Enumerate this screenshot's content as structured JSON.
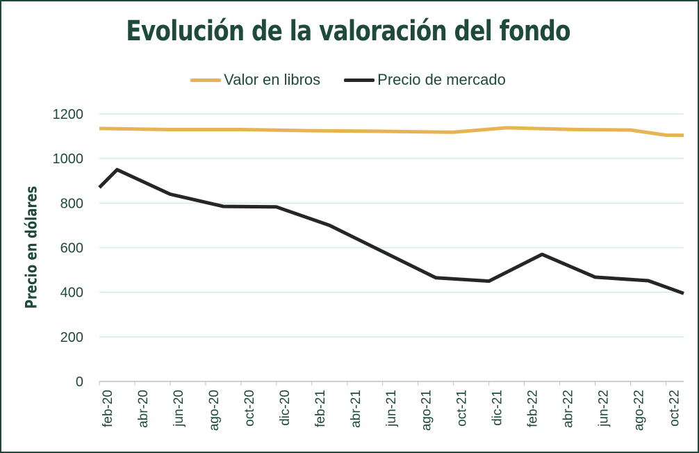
{
  "chart_data": {
    "type": "line",
    "title": "Evolución de la valoración del fondo",
    "xlabel": "",
    "ylabel": "Precio en dólares",
    "ylim": [
      0,
      1200
    ],
    "yticks": [
      "0",
      "200",
      "400",
      "600",
      "800",
      "1000",
      "1200"
    ],
    "categories": [
      "feb-20",
      "abr-20",
      "jun-20",
      "ago-20",
      "oct-20",
      "dic-20",
      "feb-21",
      "abr-21",
      "jun-21",
      "ago-21",
      "oct-21",
      "dic-21",
      "feb-22",
      "abr-22",
      "jun-22",
      "ago-22",
      "oct-22"
    ],
    "x": [
      0,
      1,
      2,
      3,
      4,
      5,
      6,
      7,
      8,
      9,
      10,
      11,
      12,
      13,
      14,
      15,
      16,
      17,
      18,
      19,
      20,
      21,
      22,
      23,
      24,
      25,
      26,
      27,
      28,
      29,
      30,
      31,
      32,
      33
    ],
    "legend_position": "top",
    "grid": true,
    "series": [
      {
        "name": "Valor en libros",
        "color": "#e6b552",
        "points": [
          [
            0,
            1135
          ],
          [
            4,
            1130
          ],
          [
            8,
            1130
          ],
          [
            12,
            1125
          ],
          [
            16,
            1122
          ],
          [
            20,
            1118
          ],
          [
            23,
            1138
          ],
          [
            27,
            1130
          ],
          [
            30,
            1128
          ],
          [
            32,
            1105
          ],
          [
            33,
            1104
          ]
        ]
      },
      {
        "name": "Precio de mercado",
        "color": "#262626",
        "points": [
          [
            0,
            870
          ],
          [
            1,
            950
          ],
          [
            4,
            840
          ],
          [
            7,
            785
          ],
          [
            10,
            783
          ],
          [
            13,
            700
          ],
          [
            19,
            465
          ],
          [
            22,
            450
          ],
          [
            25,
            570
          ],
          [
            28,
            468
          ],
          [
            31,
            452
          ],
          [
            33,
            395
          ]
        ]
      }
    ]
  }
}
